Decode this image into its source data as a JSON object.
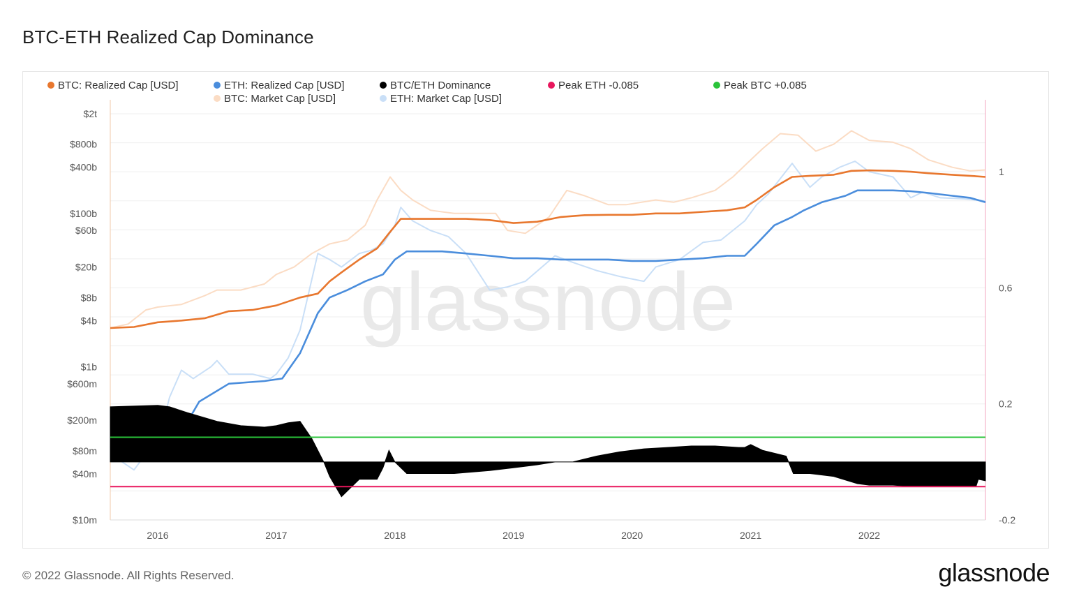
{
  "title": "BTC-ETH Realized Cap Dominance",
  "footer": "© 2022 Glassnode. All Rights Reserved.",
  "logo": "glassnode",
  "watermark": "glassnode",
  "chart_data": {
    "type": "line",
    "legend_placement": "top",
    "legend": [
      {
        "label": "BTC: Realized Cap [USD]",
        "color": "#e8772e"
      },
      {
        "label": "ETH: Realized Cap [USD]",
        "color": "#4a8ddc"
      },
      {
        "label": "BTC/ETH Dominance",
        "color": "#000000"
      },
      {
        "label": "Peak ETH -0.085",
        "color": "#e8175d"
      },
      {
        "label": "Peak BTC +0.085",
        "color": "#2ac33a"
      },
      {
        "label": "BTC: Market Cap [USD]",
        "color": "#fbdcc4"
      },
      {
        "label": "ETH: Market Cap [USD]",
        "color": "#c9dff7"
      }
    ],
    "x_ticks": [
      "2016",
      "2017",
      "2018",
      "2019",
      "2020",
      "2021",
      "2022"
    ],
    "x_range": [
      2015.6,
      2022.98
    ],
    "y_left": {
      "scale": "log",
      "ticks": [
        {
          "label": "$2t",
          "value": 2000000000000.0
        },
        {
          "label": "$800b",
          "value": 800000000000.0
        },
        {
          "label": "$400b",
          "value": 400000000000.0
        },
        {
          "label": "$100b",
          "value": 100000000000.0
        },
        {
          "label": "$60b",
          "value": 60000000000.0
        },
        {
          "label": "$20b",
          "value": 20000000000.0
        },
        {
          "label": "$8b",
          "value": 8000000000.0
        },
        {
          "label": "$4b",
          "value": 4000000000.0
        },
        {
          "label": "$1b",
          "value": 1000000000.0
        },
        {
          "label": "$600m",
          "value": 600000000.0
        },
        {
          "label": "$200m",
          "value": 200000000.0
        },
        {
          "label": "$80m",
          "value": 80000000.0
        },
        {
          "label": "$40m",
          "value": 40000000.0
        },
        {
          "label": "$10m",
          "value": 10000000.0
        }
      ],
      "range": [
        10000000.0,
        2000000000000.0
      ]
    },
    "y_right": {
      "ticks": [
        {
          "label": "1",
          "value": 1
        },
        {
          "label": "0.6",
          "value": 0.6
        },
        {
          "label": "0.2",
          "value": 0.2
        },
        {
          "label": "-0.2",
          "value": -0.2
        }
      ],
      "range": [
        -0.2,
        1.2
      ]
    },
    "grid": true,
    "series": [
      {
        "name": "BTC: Market Cap [USD]",
        "axis": "left",
        "color": "#fbdcc4",
        "x": [
          2015.6,
          2015.75,
          2015.9,
          2016.0,
          2016.2,
          2016.4,
          2016.5,
          2016.7,
          2016.9,
          2017.0,
          2017.15,
          2017.3,
          2017.45,
          2017.6,
          2017.75,
          2017.85,
          2017.96,
          2018.05,
          2018.15,
          2018.3,
          2018.5,
          2018.7,
          2018.85,
          2018.95,
          2019.1,
          2019.3,
          2019.45,
          2019.6,
          2019.8,
          2019.95,
          2020.2,
          2020.35,
          2020.5,
          2020.7,
          2020.85,
          2021.0,
          2021.1,
          2021.25,
          2021.4,
          2021.55,
          2021.7,
          2021.85,
          2022.0,
          2022.2,
          2022.35,
          2022.5,
          2022.7,
          2022.85,
          2022.98
        ],
        "y": [
          3200000000.0,
          3600000000.0,
          5500000000.0,
          6000000000.0,
          6500000000.0,
          8500000000.0,
          10000000000.0,
          10000000000.0,
          12000000000.0,
          16000000000.0,
          20000000000.0,
          30000000000.0,
          40000000000.0,
          45000000000.0,
          70000000000.0,
          150000000000.0,
          300000000000.0,
          200000000000.0,
          150000000000.0,
          110000000000.0,
          100000000000.0,
          100000000000.0,
          100000000000.0,
          60000000000.0,
          55000000000.0,
          90000000000.0,
          200000000000.0,
          170000000000.0,
          130000000000.0,
          130000000000.0,
          150000000000.0,
          140000000000.0,
          160000000000.0,
          200000000000.0,
          300000000000.0,
          500000000000.0,
          700000000000.0,
          1100000000000.0,
          1050000000000.0,
          650000000000.0,
          800000000000.0,
          1200000000000.0,
          900000000000.0,
          850000000000.0,
          700000000000.0,
          500000000000.0,
          400000000000.0,
          360000000000.0,
          370000000000.0
        ]
      },
      {
        "name": "ETH: Market Cap [USD]",
        "axis": "left",
        "color": "#c9dff7",
        "x": [
          2015.6,
          2015.68,
          2015.8,
          2015.92,
          2016.0,
          2016.1,
          2016.2,
          2016.3,
          2016.45,
          2016.5,
          2016.6,
          2016.8,
          2016.95,
          2017.0,
          2017.1,
          2017.2,
          2017.35,
          2017.45,
          2017.55,
          2017.7,
          2017.8,
          2017.9,
          2018.0,
          2018.05,
          2018.15,
          2018.3,
          2018.45,
          2018.6,
          2018.8,
          2018.95,
          2019.1,
          2019.35,
          2019.5,
          2019.7,
          2019.9,
          2020.1,
          2020.2,
          2020.4,
          2020.6,
          2020.75,
          2020.95,
          2021.05,
          2021.15,
          2021.35,
          2021.5,
          2021.6,
          2021.75,
          2021.88,
          2022.0,
          2022.2,
          2022.35,
          2022.45,
          2022.6,
          2022.8,
          2022.98
        ],
        "y": [
          90000000.0,
          60000000.0,
          45000000.0,
          80000000.0,
          100000000.0,
          400000000.0,
          900000000.0,
          700000000.0,
          1000000000.0,
          1200000000.0,
          800000000.0,
          800000000.0,
          700000000.0,
          800000000.0,
          1300000000.0,
          3000000000.0,
          30000000000.0,
          25000000000.0,
          20000000000.0,
          30000000000.0,
          33000000000.0,
          40000000000.0,
          70000000000.0,
          120000000000.0,
          80000000000.0,
          60000000000.0,
          50000000000.0,
          30000000000.0,
          10000000000.0,
          11000000000.0,
          13000000000.0,
          28000000000.0,
          23000000000.0,
          18000000000.0,
          15000000000.0,
          13000000000.0,
          20000000000.0,
          25000000000.0,
          42000000000.0,
          45000000000.0,
          80000000000.0,
          130000000000.0,
          180000000000.0,
          450000000000.0,
          220000000000.0,
          300000000000.0,
          400000000000.0,
          480000000000.0,
          350000000000.0,
          300000000000.0,
          160000000000.0,
          190000000000.0,
          160000000000.0,
          155000000000.0,
          145000000000.0
        ]
      },
      {
        "name": "BTC: Realized Cap [USD]",
        "axis": "left",
        "color": "#e8772e",
        "x": [
          2015.6,
          2015.8,
          2016.0,
          2016.2,
          2016.4,
          2016.6,
          2016.8,
          2017.0,
          2017.2,
          2017.35,
          2017.45,
          2017.55,
          2017.7,
          2017.85,
          2017.95,
          2018.05,
          2018.2,
          2018.4,
          2018.6,
          2018.8,
          2019.0,
          2019.2,
          2019.4,
          2019.6,
          2019.8,
          2020.0,
          2020.2,
          2020.4,
          2020.6,
          2020.8,
          2020.95,
          2021.05,
          2021.2,
          2021.35,
          2021.5,
          2021.7,
          2021.85,
          2022.0,
          2022.2,
          2022.35,
          2022.5,
          2022.7,
          2022.85,
          2022.98
        ],
        "y": [
          3200000000.0,
          3300000000.0,
          3800000000.0,
          4000000000.0,
          4300000000.0,
          5300000000.0,
          5500000000.0,
          6300000000.0,
          8000000000.0,
          9000000000.0,
          13000000000.0,
          17000000000.0,
          25000000000.0,
          35000000000.0,
          55000000000.0,
          85000000000.0,
          85000000000.0,
          85000000000.0,
          85000000000.0,
          82000000000.0,
          75000000000.0,
          78000000000.0,
          90000000000.0,
          95000000000.0,
          96000000000.0,
          96000000000.0,
          100000000000.0,
          100000000000.0,
          105000000000.0,
          110000000000.0,
          120000000000.0,
          150000000000.0,
          220000000000.0,
          300000000000.0,
          310000000000.0,
          320000000000.0,
          360000000000.0,
          365000000000.0,
          360000000000.0,
          350000000000.0,
          335000000000.0,
          320000000000.0,
          310000000000.0,
          300000000000.0
        ]
      },
      {
        "name": "ETH: Realized Cap [USD]",
        "axis": "left",
        "color": "#4a8ddc",
        "x": [
          2016.1,
          2016.2,
          2016.35,
          2016.6,
          2016.9,
          2017.05,
          2017.2,
          2017.35,
          2017.45,
          2017.6,
          2017.75,
          2017.9,
          2018.0,
          2018.1,
          2018.2,
          2018.4,
          2018.6,
          2018.8,
          2019.0,
          2019.2,
          2019.4,
          2019.6,
          2019.8,
          2020.0,
          2020.2,
          2020.4,
          2020.6,
          2020.8,
          2020.95,
          2021.05,
          2021.2,
          2021.35,
          2021.45,
          2021.6,
          2021.8,
          2021.9,
          2022.0,
          2022.2,
          2022.35,
          2022.5,
          2022.7,
          2022.85,
          2022.98
        ],
        "y": [
          100000000.0,
          140000000.0,
          350000000.0,
          600000000.0,
          650000000.0,
          700000000.0,
          1500000000.0,
          5000000000.0,
          8000000000.0,
          10000000000.0,
          13000000000.0,
          16000000000.0,
          25000000000.0,
          32000000000.0,
          32000000000.0,
          32000000000.0,
          30000000000.0,
          28000000000.0,
          26000000000.0,
          26000000000.0,
          25000000000.0,
          25000000000.0,
          25000000000.0,
          24000000000.0,
          24000000000.0,
          25000000000.0,
          26000000000.0,
          28000000000.0,
          28000000000.0,
          40000000000.0,
          70000000000.0,
          90000000000.0,
          110000000000.0,
          140000000000.0,
          170000000000.0,
          200000000000.0,
          200000000000.0,
          200000000000.0,
          195000000000.0,
          185000000000.0,
          170000000000.0,
          160000000000.0,
          140000000000.0
        ]
      },
      {
        "name": "BTC/ETH Dominance",
        "axis": "right",
        "color": "#000000",
        "fill": true,
        "x": [
          2015.6,
          2016.0,
          2016.1,
          2016.25,
          2016.5,
          2016.7,
          2016.9,
          2017.0,
          2017.1,
          2017.2,
          2017.3,
          2017.4,
          2017.45,
          2017.55,
          2017.6,
          2017.7,
          2017.85,
          2017.9,
          2017.95,
          2018.0,
          2018.1,
          2018.3,
          2018.5,
          2018.8,
          2019.0,
          2019.2,
          2019.35,
          2019.5,
          2019.7,
          2019.9,
          2020.1,
          2020.3,
          2020.5,
          2020.7,
          2020.9,
          2020.95,
          2021.0,
          2021.1,
          2021.2,
          2021.3,
          2021.32,
          2021.36,
          2021.5,
          2021.7,
          2021.9,
          2022.0,
          2022.2,
          2022.4,
          2022.6,
          2022.8,
          2022.9,
          2022.92,
          2022.98
        ],
        "y": [
          0.19,
          0.195,
          0.19,
          0.17,
          0.14,
          0.125,
          0.12,
          0.125,
          0.135,
          0.14,
          0.08,
          0.0,
          -0.05,
          -0.12,
          -0.1,
          -0.06,
          -0.06,
          -0.02,
          0.04,
          0.0,
          -0.04,
          -0.04,
          -0.04,
          -0.03,
          -0.02,
          -0.01,
          0.0,
          0.0,
          0.02,
          0.035,
          0.045,
          0.05,
          0.055,
          0.055,
          0.05,
          0.05,
          0.06,
          0.04,
          0.03,
          0.02,
          0.0,
          -0.04,
          -0.04,
          -0.05,
          -0.075,
          -0.08,
          -0.08,
          -0.085,
          -0.085,
          -0.085,
          -0.085,
          -0.06,
          -0.065
        ]
      },
      {
        "name": "Peak BTC +0.085",
        "axis": "right",
        "color": "#2ac33a",
        "constant": 0.085
      },
      {
        "name": "Peak ETH -0.085",
        "axis": "right",
        "color": "#e8175d",
        "constant": -0.085
      }
    ]
  }
}
